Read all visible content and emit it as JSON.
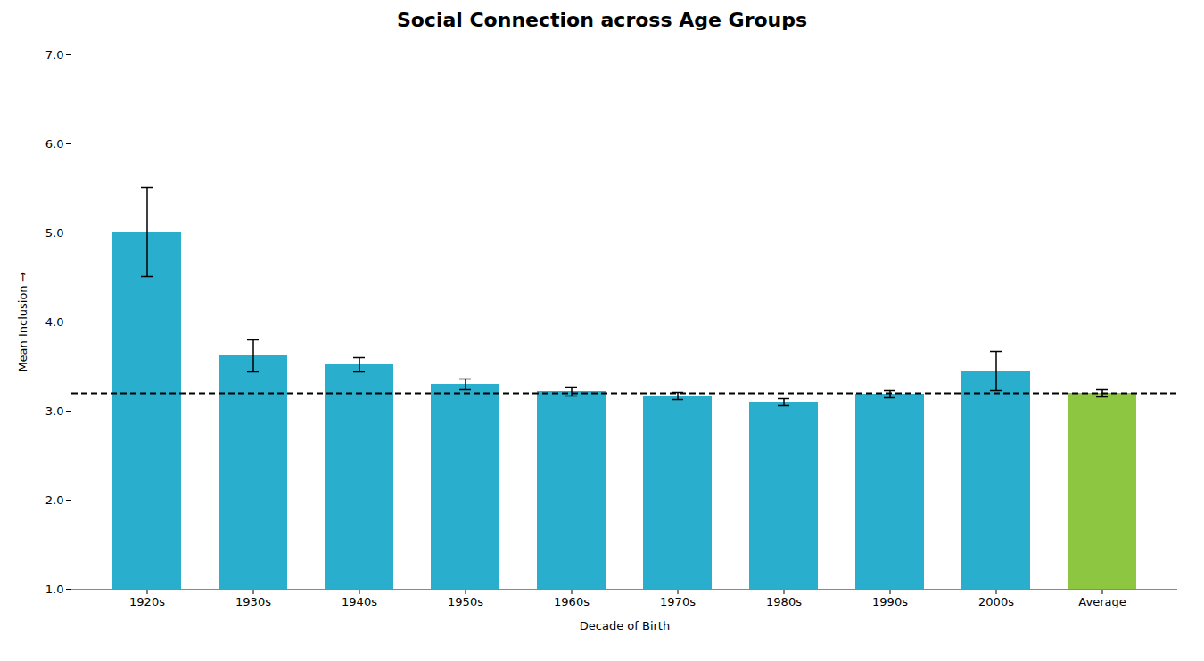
{
  "chart_data": {
    "type": "bar",
    "title": "Social Connection across Age Groups",
    "xlabel": "Decade of Birth",
    "ylabel": "Mean Inclusion",
    "categories": [
      "1920s",
      "1930s",
      "1940s",
      "1950s",
      "1960s",
      "1970s",
      "1980s",
      "1990s",
      "2000s",
      "Average"
    ],
    "values": [
      5.01,
      3.62,
      3.52,
      3.3,
      3.22,
      3.17,
      3.1,
      3.19,
      3.45,
      3.2
    ],
    "errors": [
      0.5,
      0.18,
      0.08,
      0.06,
      0.05,
      0.04,
      0.04,
      0.04,
      0.22,
      0.04
    ],
    "colors": [
      "#29aece",
      "#29aece",
      "#29aece",
      "#29aece",
      "#29aece",
      "#29aece",
      "#29aece",
      "#29aece",
      "#29aece",
      "#8dc641"
    ],
    "reference_line": 3.2,
    "ylim": [
      1.0,
      7.0
    ],
    "yticks": [
      {
        "value": 1,
        "label": "1.0"
      },
      {
        "value": 2,
        "label": "2.0"
      },
      {
        "value": 3,
        "label": "3.0"
      },
      {
        "value": 4,
        "label": "4.0"
      },
      {
        "value": 5,
        "label": "5.0"
      },
      {
        "value": 6,
        "label": "6.0"
      },
      {
        "value": 7,
        "label": "7.0"
      }
    ],
    "grid": false
  }
}
